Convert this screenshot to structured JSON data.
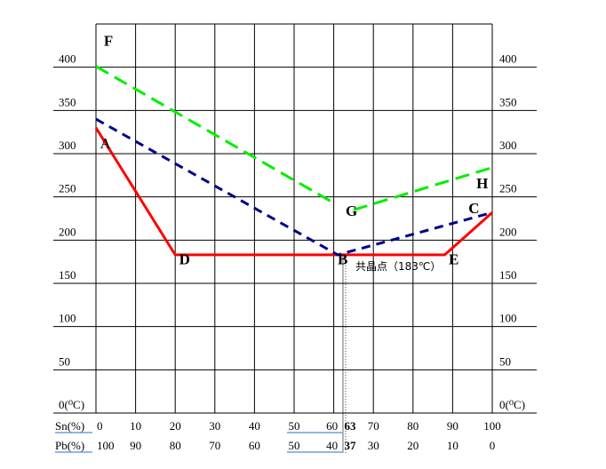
{
  "chart_data": {
    "type": "line",
    "title": "",
    "xlabel": "",
    "ylabel": "",
    "xlim": [
      0,
      100
    ],
    "ylim": [
      0,
      450
    ],
    "grid": true,
    "y_ticks": [
      "0(⁰C)",
      "50",
      "100",
      "150",
      "200",
      "250",
      "300",
      "350",
      "400"
    ],
    "y_tick_values": [
      0,
      50,
      100,
      150,
      200,
      250,
      300,
      350,
      400
    ],
    "x_row_sn": {
      "label": "Sn(%)",
      "ticks": [
        "0",
        "10",
        "20",
        "30",
        "40",
        "50",
        "60",
        "63",
        "70",
        "80",
        "90",
        "100"
      ],
      "values": [
        0,
        10,
        20,
        30,
        40,
        50,
        60,
        63,
        70,
        80,
        90,
        100
      ]
    },
    "x_row_pb": {
      "label": "Pb(%)",
      "ticks": [
        "100",
        "90",
        "80",
        "70",
        "60",
        "50",
        "40",
        "37",
        "30",
        "20",
        "10",
        "0"
      ],
      "values": [
        0,
        10,
        20,
        30,
        40,
        50,
        60,
        63,
        70,
        80,
        90,
        100
      ]
    },
    "eutectic_x": 63,
    "series": [
      {
        "color": "#ff0000",
        "style": "solid",
        "x": [
          0,
          20,
          88,
          100
        ],
        "y": [
          330,
          183,
          183,
          232
        ]
      },
      {
        "color": "#00008b",
        "style": "dashed",
        "x": [
          0,
          61,
          100
        ],
        "y": [
          340,
          183,
          232
        ]
      },
      {
        "color": "#00ee00",
        "style": "dashed",
        "x": [
          0,
          60
        ],
        "y": [
          401,
          243
        ]
      },
      {
        "color": "#00ee00",
        "style": "dashed",
        "x": [
          65,
          100
        ],
        "y": [
          235,
          284
        ]
      }
    ],
    "points": [
      {
        "label": "F",
        "x": 2,
        "y": 425
      },
      {
        "label": "A",
        "x": 1,
        "y": 306
      },
      {
        "label": "D",
        "x": 21,
        "y": 172
      },
      {
        "label": "B",
        "x": 61,
        "y": 172
      },
      {
        "label": "E",
        "x": 89,
        "y": 172
      },
      {
        "label": "G",
        "x": 63,
        "y": 228
      },
      {
        "label": "H",
        "x": 96,
        "y": 260
      },
      {
        "label": "C",
        "x": 94,
        "y": 231
      }
    ],
    "annotation": "共晶点（183℃）"
  }
}
